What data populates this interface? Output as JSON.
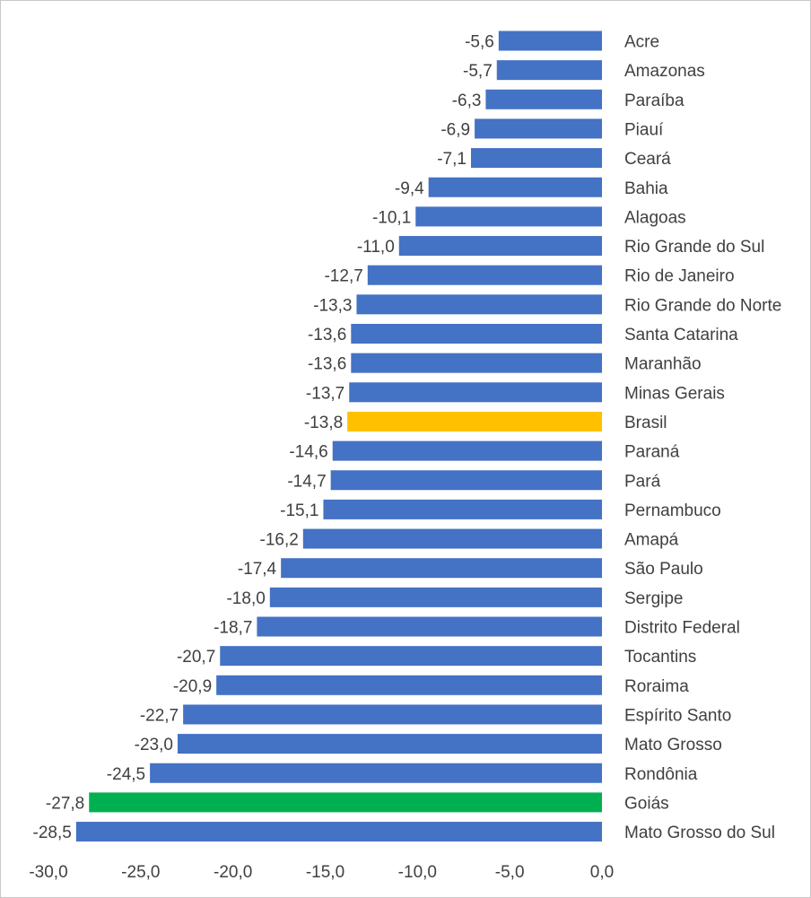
{
  "chart_data": {
    "type": "bar",
    "orientation": "horizontal",
    "title": "",
    "xlabel": "",
    "ylabel": "",
    "xlim": [
      -30,
      0
    ],
    "grid": false,
    "categories": [
      "Acre",
      "Amazonas",
      "Paraíba",
      "Piauí",
      "Ceará",
      "Bahia",
      "Alagoas",
      "Rio Grande do Sul",
      "Rio de Janeiro",
      "Rio Grande do Norte",
      "Santa Catarina",
      "Maranhão",
      "Minas Gerais",
      "Brasil",
      "Paraná",
      "Pará",
      "Pernambuco",
      "Amapá",
      "São Paulo",
      "Sergipe",
      "Distrito Federal",
      "Tocantins",
      "Roraima",
      "Espírito Santo",
      "Mato Grosso",
      "Rondônia",
      "Goiás",
      "Mato Grosso do Sul"
    ],
    "values": [
      -5.6,
      -5.7,
      -6.3,
      -6.9,
      -7.1,
      -9.4,
      -10.1,
      -11.0,
      -12.7,
      -13.3,
      -13.6,
      -13.6,
      -13.7,
      -13.8,
      -14.6,
      -14.7,
      -15.1,
      -16.2,
      -17.4,
      -18.0,
      -18.7,
      -20.7,
      -20.9,
      -22.7,
      -23.0,
      -24.5,
      -27.8,
      -28.5
    ],
    "value_labels": [
      "-5,6",
      "-5,7",
      "-6,3",
      "-6,9",
      "-7,1",
      "-9,4",
      "-10,1",
      "-11,0",
      "-12,7",
      "-13,3",
      "-13,6",
      "-13,6",
      "-13,7",
      "-13,8",
      "-14,6",
      "-14,7",
      "-15,1",
      "-16,2",
      "-17,4",
      "-18,0",
      "-18,7",
      "-20,7",
      "-20,9",
      "-22,7",
      "-23,0",
      "-24,5",
      "-27,8",
      "-28,5"
    ],
    "bar_colors": [
      "#4472c4",
      "#4472c4",
      "#4472c4",
      "#4472c4",
      "#4472c4",
      "#4472c4",
      "#4472c4",
      "#4472c4",
      "#4472c4",
      "#4472c4",
      "#4472c4",
      "#4472c4",
      "#4472c4",
      "#ffc000",
      "#4472c4",
      "#4472c4",
      "#4472c4",
      "#4472c4",
      "#4472c4",
      "#4472c4",
      "#4472c4",
      "#4472c4",
      "#4472c4",
      "#4472c4",
      "#4472c4",
      "#4472c4",
      "#00b050",
      "#4472c4"
    ],
    "x_ticks": [
      -30,
      -25,
      -20,
      -15,
      -10,
      -5,
      0
    ],
    "x_tick_labels": [
      "-30,0",
      "-25,0",
      "-20,0",
      "-15,0",
      "-10,0",
      "-5,0",
      "0,0"
    ]
  }
}
